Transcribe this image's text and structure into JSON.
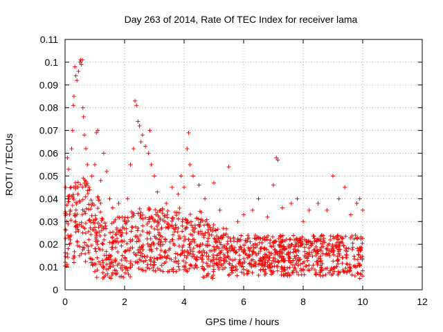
{
  "chart_data": {
    "type": "scatter",
    "title": "Day 263 of 2014, Rate Of TEC Index for receiver lama",
    "xlabel": "GPS time / hours",
    "ylabel": "ROTI / TECUs",
    "xlim": [
      0,
      12
    ],
    "ylim": [
      0,
      0.11
    ],
    "x_ticks": [
      "0",
      "2",
      "4",
      "6",
      "8",
      "10",
      "12"
    ],
    "y_ticks": [
      "0",
      "0.01",
      "0.02",
      "0.03",
      "0.04",
      "0.05",
      "0.06",
      "0.07",
      "0.08",
      "0.09",
      "0.1",
      "0.11"
    ],
    "grid": true,
    "marker": "plus",
    "series_color": "#ff0000",
    "series": [
      {
        "name": "ROTI",
        "note": "dense point cloud, representative sample",
        "points": [
          [
            0.02,
            0.045
          ],
          [
            0.05,
            0.03
          ],
          [
            0.08,
            0.058
          ],
          [
            0.1,
            0.041
          ],
          [
            0.12,
            0.053
          ],
          [
            0.15,
            0.02
          ],
          [
            0.18,
            0.035
          ],
          [
            0.2,
            0.045
          ],
          [
            0.22,
            0.062
          ],
          [
            0.25,
            0.07
          ],
          [
            0.28,
            0.081
          ],
          [
            0.3,
            0.085
          ],
          [
            0.33,
            0.098
          ],
          [
            0.36,
            0.094
          ],
          [
            0.4,
            0.092
          ],
          [
            0.45,
            0.096
          ],
          [
            0.5,
            0.1
          ],
          [
            0.52,
            0.101
          ],
          [
            0.55,
            0.099
          ],
          [
            0.58,
            0.101
          ],
          [
            0.6,
            0.08
          ],
          [
            0.62,
            0.076
          ],
          [
            0.65,
            0.068
          ],
          [
            0.7,
            0.062
          ],
          [
            0.75,
            0.055
          ],
          [
            0.8,
            0.045
          ],
          [
            0.9,
            0.05
          ],
          [
            1.0,
            0.055
          ],
          [
            1.05,
            0.069
          ],
          [
            1.1,
            0.07
          ],
          [
            1.2,
            0.048
          ],
          [
            1.3,
            0.06
          ],
          [
            1.4,
            0.052
          ],
          [
            1.5,
            0.04
          ],
          [
            1.6,
            0.036
          ],
          [
            1.8,
            0.038
          ],
          [
            2.0,
            0.03
          ],
          [
            2.1,
            0.04
          ],
          [
            2.2,
            0.055
          ],
          [
            2.3,
            0.062
          ],
          [
            2.35,
            0.083
          ],
          [
            2.4,
            0.081
          ],
          [
            2.45,
            0.074
          ],
          [
            2.5,
            0.072
          ],
          [
            2.55,
            0.065
          ],
          [
            2.6,
            0.068
          ],
          [
            2.7,
            0.063
          ],
          [
            2.8,
            0.06
          ],
          [
            2.85,
            0.07
          ],
          [
            2.9,
            0.055
          ],
          [
            3.0,
            0.05
          ],
          [
            3.1,
            0.043
          ],
          [
            3.2,
            0.035
          ],
          [
            3.4,
            0.038
          ],
          [
            3.6,
            0.045
          ],
          [
            3.8,
            0.042
          ],
          [
            3.9,
            0.05
          ],
          [
            4.0,
            0.045
          ],
          [
            4.1,
            0.062
          ],
          [
            4.15,
            0.069
          ],
          [
            4.2,
            0.055
          ],
          [
            4.3,
            0.05
          ],
          [
            4.5,
            0.046
          ],
          [
            4.7,
            0.04
          ],
          [
            5.0,
            0.047
          ],
          [
            5.2,
            0.035
          ],
          [
            5.5,
            0.054
          ],
          [
            5.8,
            0.03
          ],
          [
            6.0,
            0.033
          ],
          [
            6.3,
            0.035
          ],
          [
            6.5,
            0.04
          ],
          [
            6.8,
            0.032
          ],
          [
            7.0,
            0.046
          ],
          [
            7.1,
            0.058
          ],
          [
            7.15,
            0.057
          ],
          [
            7.3,
            0.036
          ],
          [
            7.6,
            0.038
          ],
          [
            7.8,
            0.04
          ],
          [
            8.0,
            0.03
          ],
          [
            8.2,
            0.035
          ],
          [
            8.5,
            0.038
          ],
          [
            8.8,
            0.035
          ],
          [
            9.0,
            0.05
          ],
          [
            9.2,
            0.04
          ],
          [
            9.4,
            0.045
          ],
          [
            9.6,
            0.033
          ],
          [
            9.8,
            0.038
          ],
          [
            9.9,
            0.04
          ],
          [
            10.0,
            0.035
          ],
          [
            0.3,
            0.012
          ],
          [
            1.0,
            0.008
          ],
          [
            2.0,
            0.01
          ],
          [
            3.0,
            0.012
          ],
          [
            4.0,
            0.01
          ],
          [
            5.0,
            0.009
          ],
          [
            6.0,
            0.009
          ],
          [
            7.0,
            0.008
          ],
          [
            8.0,
            0.009
          ],
          [
            9.0,
            0.007
          ],
          [
            9.9,
            0.005
          ],
          [
            10.0,
            0.006
          ]
        ]
      }
    ]
  }
}
